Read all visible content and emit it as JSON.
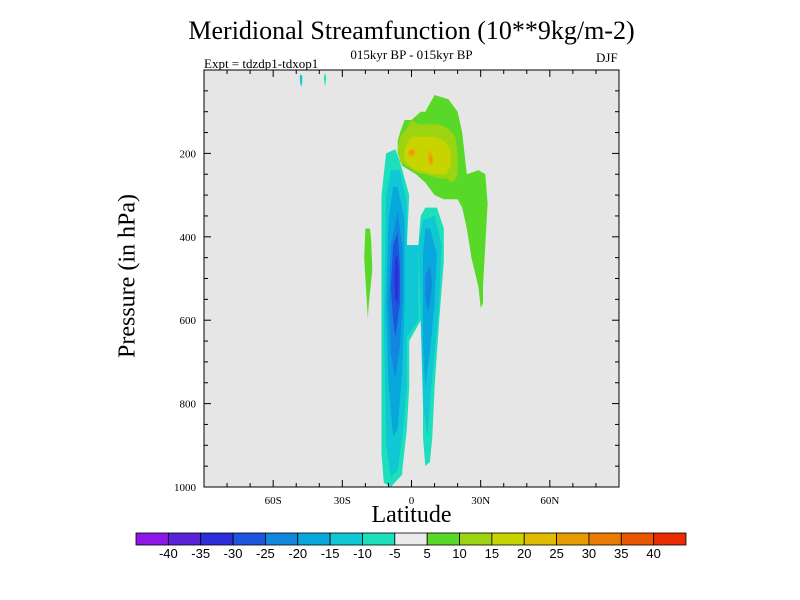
{
  "chart_data": {
    "type": "heatmap",
    "title": "Meridional Streamfunction (10**9kg/m-2)",
    "subtitle": "015kyr BP - 015kyr BP",
    "left_label": "Expt = tdzdp1-tdxop1",
    "right_label": "DJF",
    "xlabel": "Latitude",
    "ylabel": "Pressure (in hPa)",
    "xlim": [
      -90,
      90
    ],
    "ylim": [
      1000,
      0
    ],
    "x_ticks": [
      {
        "value": -60,
        "label": "60S"
      },
      {
        "value": -30,
        "label": "30S"
      },
      {
        "value": 0,
        "label": "0"
      },
      {
        "value": 30,
        "label": "30N"
      },
      {
        "value": 60,
        "label": "60N"
      }
    ],
    "y_ticks": [
      {
        "value": 200,
        "label": "200"
      },
      {
        "value": 400,
        "label": "400"
      },
      {
        "value": 600,
        "label": "600"
      },
      {
        "value": 800,
        "label": "800"
      },
      {
        "value": 1000,
        "label": "1000"
      }
    ],
    "background_color": "#e6e6e6",
    "contour_levels": [
      -45,
      -40,
      -35,
      -30,
      -25,
      -20,
      -15,
      -10,
      -5,
      5,
      10,
      15,
      20,
      25,
      30,
      35,
      40,
      45
    ],
    "colorbar_labels": [
      "-40",
      "-35",
      "-30",
      "-25",
      "-20",
      "-15",
      "-10",
      "-5",
      "5",
      "10",
      "15",
      "20",
      "25",
      "30",
      "35",
      "40"
    ],
    "colorbar_colors": [
      "#8e16e8",
      "#5a21d8",
      "#2d2edb",
      "#1e55de",
      "#1188dd",
      "#08a8dc",
      "#10c8d4",
      "#1edfbc",
      "#ebebeb",
      "#58d927",
      "#9dd411",
      "#c8d400",
      "#e0bc00",
      "#e69c00",
      "#ea7a00",
      "#ea5600",
      "#e82c00"
    ],
    "regions": [
      {
        "level": -5,
        "color": "#1edfbc",
        "points": [
          [
            -38,
            20
          ],
          [
            -37.5,
            5
          ],
          [
            -37,
            20
          ],
          [
            -37.5,
            40
          ]
        ]
      },
      {
        "level": -5,
        "color": "#1edfbc",
        "points": [
          [
            -5,
            220
          ],
          [
            -1,
            300
          ],
          [
            -2,
            420
          ],
          [
            3,
            420
          ],
          [
            4,
            600
          ],
          [
            -1,
            650
          ],
          [
            -1,
            760
          ],
          [
            -2,
            860
          ],
          [
            -4,
            960
          ],
          [
            -4,
            970
          ],
          [
            -9,
            1000
          ],
          [
            -12,
            990
          ],
          [
            -13,
            920
          ],
          [
            -13,
            600
          ],
          [
            -13,
            300
          ],
          [
            -11,
            200
          ],
          [
            -7,
            190
          ]
        ]
      },
      {
        "level": -5,
        "color": "#1edfbc",
        "points": [
          [
            11,
            330
          ],
          [
            14,
            380
          ],
          [
            14,
            460
          ],
          [
            12,
            600
          ],
          [
            10,
            760
          ],
          [
            9,
            880
          ],
          [
            8,
            940
          ],
          [
            6,
            950
          ],
          [
            5,
            880
          ],
          [
            5,
            760
          ],
          [
            4,
            600
          ],
          [
            3,
            420
          ],
          [
            4,
            350
          ],
          [
            6,
            330
          ]
        ]
      },
      {
        "level": -10,
        "color": "#10c8d4",
        "points": [
          [
            -5,
            240
          ],
          [
            -2,
            320
          ],
          [
            -2,
            420
          ],
          [
            3,
            420
          ],
          [
            3,
            600
          ],
          [
            -2,
            640
          ],
          [
            -2,
            760
          ],
          [
            -4,
            880
          ],
          [
            -6,
            960
          ],
          [
            -9,
            975
          ],
          [
            -11,
            900
          ],
          [
            -12,
            600
          ],
          [
            -11,
            300
          ],
          [
            -9,
            240
          ]
        ]
      },
      {
        "level": -10,
        "color": "#10c8d4",
        "points": [
          [
            10,
            350
          ],
          [
            13,
            420
          ],
          [
            12,
            560
          ],
          [
            10,
            680
          ],
          [
            8,
            800
          ],
          [
            7,
            880
          ],
          [
            5,
            800
          ],
          [
            4,
            600
          ],
          [
            3,
            420
          ],
          [
            5,
            360
          ]
        ]
      },
      {
        "level": -15,
        "color": "#08a8dc",
        "points": [
          [
            -6,
            280
          ],
          [
            -3,
            360
          ],
          [
            -3,
            560
          ],
          [
            -4,
            720
          ],
          [
            -6,
            860
          ],
          [
            -8,
            880
          ],
          [
            -10,
            750
          ],
          [
            -11,
            560
          ],
          [
            -10,
            360
          ],
          [
            -8,
            280
          ]
        ]
      },
      {
        "level": -15,
        "color": "#08a8dc",
        "points": [
          [
            8,
            380
          ],
          [
            11,
            440
          ],
          [
            10,
            560
          ],
          [
            8,
            680
          ],
          [
            6,
            760
          ],
          [
            5,
            660
          ],
          [
            5,
            560
          ],
          [
            5,
            440
          ],
          [
            6,
            380
          ]
        ]
      },
      {
        "level": -20,
        "color": "#1188dd",
        "points": [
          [
            -6,
            340
          ],
          [
            -4,
            420
          ],
          [
            -4,
            560
          ],
          [
            -5,
            660
          ],
          [
            -7,
            740
          ],
          [
            -9,
            680
          ],
          [
            -10,
            560
          ],
          [
            -9,
            420
          ]
        ]
      },
      {
        "level": -20,
        "color": "#1188dd",
        "points": [
          [
            8,
            470
          ],
          [
            9,
            510
          ],
          [
            8,
            560
          ],
          [
            7,
            580
          ],
          [
            6,
            540
          ],
          [
            6,
            490
          ]
        ]
      },
      {
        "level": -25,
        "color": "#1e55de",
        "points": [
          [
            -6,
            390
          ],
          [
            -5,
            470
          ],
          [
            -5,
            560
          ],
          [
            -7,
            640
          ],
          [
            -8,
            600
          ],
          [
            -9,
            520
          ],
          [
            -8,
            420
          ]
        ]
      },
      {
        "level": -30,
        "color": "#2d2edb",
        "points": [
          [
            -6,
            445
          ],
          [
            -5.5,
            500
          ],
          [
            -6,
            560
          ],
          [
            -7,
            550
          ],
          [
            -7.5,
            500
          ],
          [
            -7,
            450
          ]
        ]
      },
      {
        "level": 5,
        "color": "#58d927",
        "points": [
          [
            -20,
            380
          ],
          [
            -20.5,
            450
          ],
          [
            -20,
            500
          ],
          [
            -19,
            590
          ],
          [
            -19,
            600
          ],
          [
            -18.5,
            560
          ],
          [
            -17,
            480
          ],
          [
            -17.5,
            410
          ],
          [
            -18,
            380
          ]
        ]
      },
      {
        "level": 5,
        "color": "#58d927",
        "points": [
          [
            10,
            60
          ],
          [
            16,
            70
          ],
          [
            20,
            100
          ],
          [
            22,
            150
          ],
          [
            24,
            250
          ],
          [
            29,
            240
          ],
          [
            32,
            250
          ],
          [
            33,
            320
          ],
          [
            32,
            420
          ],
          [
            31,
            520
          ],
          [
            31,
            560
          ],
          [
            30,
            570
          ],
          [
            29,
            520
          ],
          [
            26,
            450
          ],
          [
            24,
            380
          ],
          [
            22,
            330
          ],
          [
            20,
            310
          ],
          [
            14,
            310
          ],
          [
            10,
            300
          ],
          [
            6,
            270
          ],
          [
            2,
            250
          ],
          [
            -4,
            230
          ],
          [
            -6,
            200
          ],
          [
            -6,
            170
          ],
          [
            -5,
            150
          ],
          [
            -3,
            120
          ],
          [
            0,
            120
          ],
          [
            4,
            100
          ],
          [
            6,
            100
          ],
          [
            8,
            80
          ]
        ]
      },
      {
        "level": 10,
        "color": "#9dd411",
        "points": [
          [
            0,
            120
          ],
          [
            3,
            130
          ],
          [
            8,
            130
          ],
          [
            12,
            130
          ],
          [
            16,
            140
          ],
          [
            19,
            160
          ],
          [
            20,
            200
          ],
          [
            20,
            250
          ],
          [
            18,
            270
          ],
          [
            15,
            260
          ],
          [
            12,
            260
          ],
          [
            6,
            250
          ],
          [
            2,
            245
          ],
          [
            -2,
            230
          ],
          [
            -5,
            220
          ],
          [
            -6,
            190
          ],
          [
            -5,
            160
          ],
          [
            -2,
            140
          ]
        ]
      },
      {
        "level": 15,
        "color": "#c8d400",
        "points": [
          [
            0,
            160
          ],
          [
            4,
            160
          ],
          [
            10,
            160
          ],
          [
            14,
            170
          ],
          [
            17,
            190
          ],
          [
            17,
            230
          ],
          [
            15,
            250
          ],
          [
            10,
            250
          ],
          [
            6,
            245
          ],
          [
            2,
            240
          ],
          [
            -1,
            230
          ],
          [
            -3,
            215
          ],
          [
            -3,
            195
          ],
          [
            -2,
            175
          ]
        ]
      },
      {
        "level": 20,
        "color": "#e0bc00",
        "points": [
          [
            -1,
            190
          ],
          [
            1,
            185
          ],
          [
            2,
            195
          ],
          [
            1,
            210
          ],
          [
            -1,
            208
          ],
          [
            -2,
            200
          ]
        ]
      },
      {
        "level": 20,
        "color": "#e0bc00",
        "points": [
          [
            8,
            190
          ],
          [
            9.5,
            205
          ],
          [
            9.5,
            225
          ],
          [
            8,
            230
          ],
          [
            7,
            215
          ],
          [
            7,
            195
          ]
        ]
      },
      {
        "level": 25,
        "color": "#e69c00",
        "points": [
          [
            -1,
            193
          ],
          [
            1,
            192
          ],
          [
            1,
            203
          ],
          [
            -1,
            203
          ]
        ]
      },
      {
        "level": 25,
        "color": "#e69c00",
        "points": [
          [
            8,
            200
          ],
          [
            9,
            210
          ],
          [
            9,
            225
          ],
          [
            8,
            225
          ],
          [
            7.7,
            210
          ]
        ]
      },
      {
        "level": -10,
        "color": "#10c8d4",
        "points": [
          [
            -48,
            10
          ],
          [
            -47.3,
            15
          ],
          [
            -47.5,
            35
          ],
          [
            -47.8,
            40
          ],
          [
            -48.3,
            30
          ],
          [
            -48.5,
            15
          ]
        ]
      }
    ]
  }
}
